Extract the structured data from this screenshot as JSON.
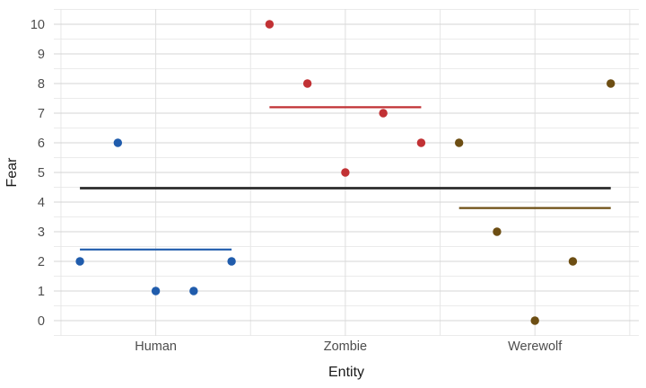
{
  "chart_data": {
    "type": "scatter",
    "title": "",
    "xlabel": "Entity",
    "ylabel": "Fear",
    "categories": [
      "Human",
      "Zombie",
      "Werewolf"
    ],
    "x_offsets": [
      -0.4,
      -0.2,
      0,
      0.2,
      0.4
    ],
    "series": [
      {
        "name": "Human",
        "color": "#205cac",
        "values": [
          2,
          6,
          1,
          1,
          2
        ],
        "mean": 2.4
      },
      {
        "name": "Zombie",
        "color": "#c13134",
        "values": [
          10,
          8,
          5,
          7,
          6
        ],
        "mean": 7.2
      },
      {
        "name": "Werewolf",
        "color": "#6d4e13",
        "values": [
          6,
          3,
          0,
          2,
          8
        ],
        "mean": 3.8
      }
    ],
    "grand_mean": 4.47,
    "grand_mean_color": "#2b2b2b",
    "ylim": [
      -0.5,
      10.5
    ],
    "yticks": [
      0,
      1,
      2,
      3,
      4,
      5,
      6,
      7,
      8,
      9,
      10
    ],
    "layout": {
      "grid_major": true,
      "grid_minor": true,
      "legend": "none",
      "background": "#ffffff",
      "grid_major_color": "#d4d4d4",
      "grid_minor_color": "#ebebeb",
      "tick_label_color": "#4d4d4d",
      "axis_title_color": "#1a1a1a"
    }
  }
}
